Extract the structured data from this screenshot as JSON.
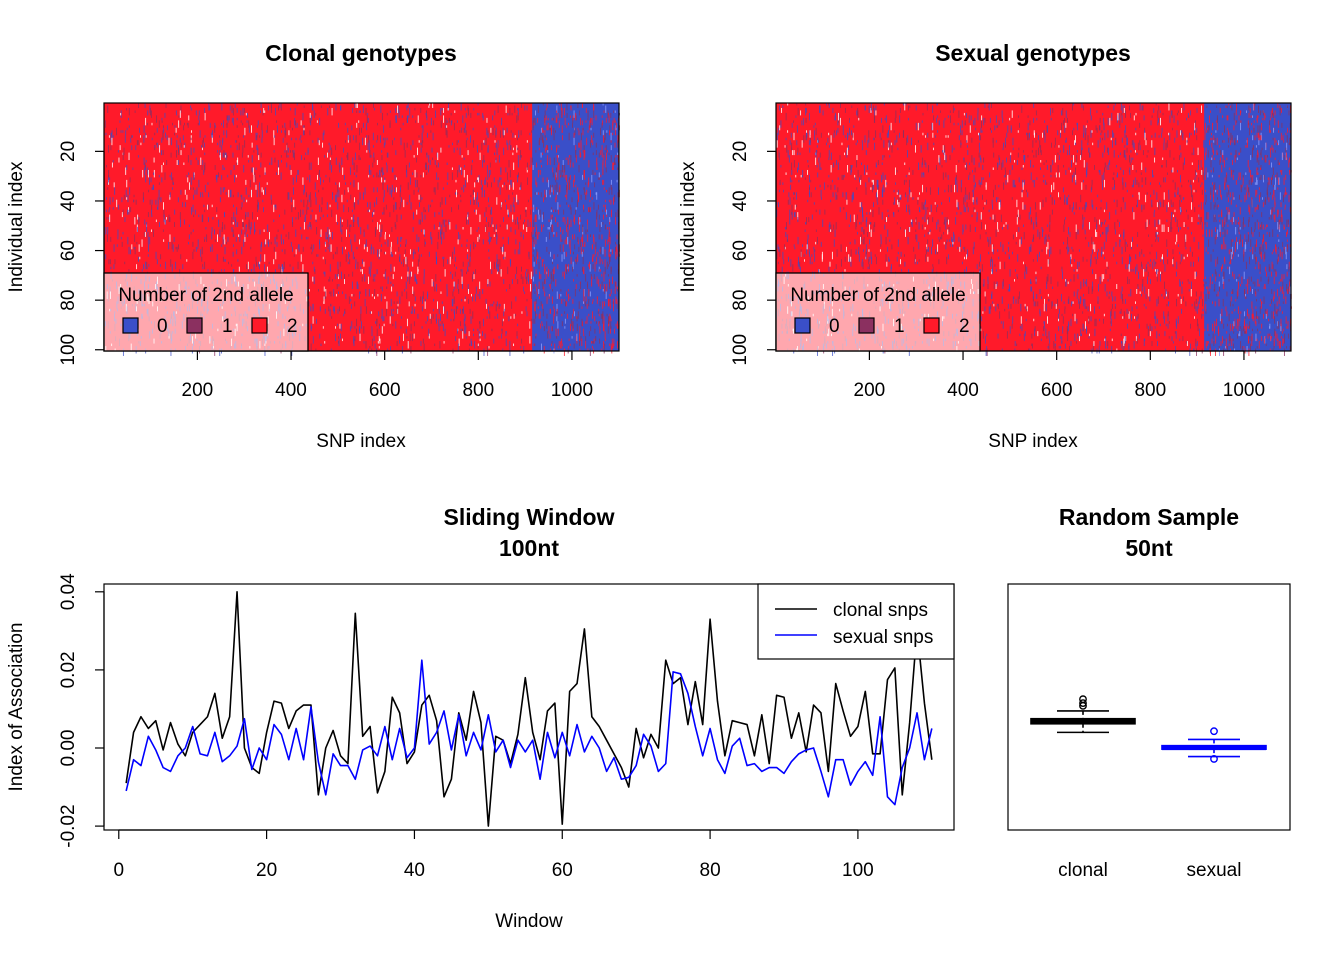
{
  "chart_data": [
    {
      "type": "heatmap",
      "title": "Clonal genotypes",
      "xlabel": "SNP index",
      "ylabel": "Individual index",
      "xlim": [
        0.5,
        1100.5
      ],
      "ylim": [
        100.5,
        0.5
      ],
      "x_ticks": [
        "200",
        "400",
        "600",
        "800",
        "1000"
      ],
      "y_ticks": [
        "20",
        "40",
        "60",
        "80",
        "100"
      ],
      "legend": {
        "title": "Number of 2nd allele",
        "position": "bottom-left",
        "entries": [
          {
            "label": "0",
            "color": "#3A4FC9"
          },
          {
            "label": "1",
            "color": "#8B3060"
          },
          {
            "label": "2",
            "color": "#FF1A2A"
          }
        ]
      },
      "pattern": {
        "snps": 1100,
        "individuals": 100,
        "mostly_2_until_snp": 915,
        "mixed_0_after_snp": 915
      }
    },
    {
      "type": "heatmap",
      "title": "Sexual genotypes",
      "xlabel": "SNP index",
      "ylabel": "Individual index",
      "xlim": [
        0.5,
        1100.5
      ],
      "ylim": [
        100.5,
        0.5
      ],
      "x_ticks": [
        "200",
        "400",
        "600",
        "800",
        "1000"
      ],
      "y_ticks": [
        "20",
        "40",
        "60",
        "80",
        "100"
      ],
      "legend": {
        "title": "Number of 2nd allele",
        "position": "bottom-left",
        "entries": [
          {
            "label": "0",
            "color": "#3A4FC9"
          },
          {
            "label": "1",
            "color": "#8B3060"
          },
          {
            "label": "2",
            "color": "#FF1A2A"
          }
        ]
      },
      "pattern": {
        "snps": 1100,
        "individuals": 100,
        "mostly_2_until_snp": 915,
        "mixed_0_after_snp": 915
      }
    },
    {
      "type": "line",
      "title": [
        "Sliding Window",
        "100nt"
      ],
      "xlabel": "Window",
      "ylabel": "Index of Association",
      "xlim": [
        -2,
        113
      ],
      "ylim": [
        -0.021,
        0.042
      ],
      "x_ticks": [
        0,
        20,
        40,
        60,
        80,
        100
      ],
      "y_ticks": [
        -0.02,
        0.0,
        0.02,
        0.04
      ],
      "y_tick_labels": [
        "-0.02",
        "0.00",
        "0.02",
        "0.04"
      ],
      "legend_position": "top-right",
      "x": [
        1,
        2,
        3,
        4,
        5,
        6,
        7,
        8,
        9,
        10,
        11,
        12,
        13,
        14,
        15,
        16,
        17,
        18,
        19,
        20,
        21,
        22,
        23,
        24,
        25,
        26,
        27,
        28,
        29,
        30,
        31,
        32,
        33,
        34,
        35,
        36,
        37,
        38,
        39,
        40,
        41,
        42,
        43,
        44,
        45,
        46,
        47,
        48,
        49,
        50,
        51,
        52,
        53,
        54,
        55,
        56,
        57,
        58,
        59,
        60,
        61,
        62,
        63,
        64,
        65,
        66,
        67,
        68,
        69,
        70,
        71,
        72,
        73,
        74,
        75,
        76,
        77,
        78,
        79,
        80,
        81,
        82,
        83,
        84,
        85,
        86,
        87,
        88,
        89,
        90,
        91,
        92,
        93,
        94,
        95,
        96,
        97,
        98,
        99,
        100,
        101,
        102,
        103,
        104,
        105,
        106,
        107,
        108,
        109,
        110
      ],
      "series": [
        {
          "name": "clonal snps",
          "color": "#000000",
          "values": [
            -0.009,
            0.004,
            0.008,
            0.005,
            0.007,
            -0.0005,
            0.0065,
            0.001,
            -0.002,
            0.004,
            0.006,
            0.008,
            0.014,
            0.0025,
            0.008,
            0.04,
            0.0,
            -0.005,
            -0.0065,
            0.004,
            0.012,
            0.0115,
            0.005,
            0.0095,
            0.011,
            0.011,
            -0.012,
            0.0,
            0.0045,
            -0.002,
            -0.004,
            0.0345,
            0.003,
            0.0055,
            -0.0115,
            -0.006,
            0.013,
            0.009,
            -0.004,
            -0.001,
            0.011,
            0.0135,
            0.007,
            -0.0125,
            -0.008,
            0.009,
            0.002,
            0.0145,
            0.0065,
            -0.02,
            0.003,
            0.002,
            -0.004,
            0.0035,
            0.018,
            0.004,
            -0.003,
            0.0095,
            0.0115,
            -0.0195,
            0.0145,
            0.0165,
            0.0305,
            0.008,
            0.0055,
            0.002,
            -0.0015,
            -0.005,
            -0.01,
            0.005,
            -0.0025,
            0.0035,
            0.0,
            0.0225,
            0.0165,
            0.018,
            0.006,
            0.017,
            0.006,
            0.033,
            0.012,
            -0.002,
            0.007,
            0.0065,
            0.006,
            -0.002,
            0.0085,
            -0.004,
            0.0135,
            0.013,
            0.0025,
            0.009,
            -0.001,
            0.011,
            0.009,
            -0.006,
            0.0165,
            0.0095,
            0.003,
            0.0055,
            0.0145,
            -0.0015,
            -0.0015,
            0.0175,
            0.0205,
            -0.012,
            0.0065,
            0.0305,
            0.0115,
            -0.003
          ]
        },
        {
          "name": "sexual snps",
          "color": "#0000FF",
          "values": [
            -0.011,
            -0.003,
            -0.0045,
            0.003,
            -0.0005,
            -0.005,
            -0.006,
            -0.002,
            0.0,
            0.0055,
            -0.0015,
            -0.002,
            0.004,
            -0.0035,
            -0.002,
            0.0005,
            0.0075,
            -0.0055,
            0.0,
            -0.003,
            0.006,
            0.0035,
            -0.003,
            0.005,
            -0.003,
            0.0105,
            -0.0035,
            -0.012,
            -0.0015,
            -0.0045,
            -0.0045,
            -0.008,
            -0.0005,
            0.0005,
            -0.002,
            0.0055,
            -0.003,
            0.005,
            -0.0025,
            0.0,
            0.0225,
            0.001,
            0.004,
            0.0095,
            -0.0005,
            0.0085,
            -0.002,
            0.004,
            -0.0005,
            0.0085,
            -0.001,
            0.002,
            -0.005,
            0.002,
            -0.001,
            0.002,
            -0.008,
            0.004,
            -0.0025,
            0.004,
            -0.002,
            0.006,
            -0.001,
            0.003,
            0.0,
            -0.006,
            -0.0025,
            -0.008,
            -0.0075,
            -0.0045,
            0.0035,
            0.0005,
            -0.006,
            -0.004,
            0.0195,
            0.019,
            0.014,
            0.0055,
            -0.002,
            0.005,
            -0.003,
            -0.0065,
            0.0005,
            0.0025,
            -0.0045,
            -0.004,
            -0.006,
            -0.005,
            -0.005,
            -0.0065,
            -0.0035,
            -0.0015,
            -0.0005,
            0.0,
            -0.006,
            -0.0125,
            -0.003,
            -0.003,
            -0.0095,
            -0.006,
            -0.0035,
            -0.007,
            0.008,
            -0.0125,
            -0.0145,
            -0.005,
            0.0,
            0.009,
            -0.003,
            0.005
          ]
        }
      ]
    },
    {
      "type": "box",
      "title": [
        "Random Sample",
        "50nt"
      ],
      "categories": [
        "clonal",
        "sexual"
      ],
      "ylim": [
        -0.021,
        0.042
      ],
      "boxes": [
        {
          "name": "clonal",
          "color": "#000000",
          "whisker_low": 0.004,
          "q1": 0.0062,
          "median": 0.0068,
          "q3": 0.0075,
          "whisker_high": 0.0095,
          "outliers": [
            0.0108,
            0.0115,
            0.0125
          ]
        },
        {
          "name": "sexual",
          "color": "#0000FF",
          "whisker_low": -0.0022,
          "q1": -0.0003,
          "median": 0.0001,
          "q3": 0.0006,
          "whisker_high": 0.0022,
          "outliers": [
            -0.0028,
            0.0043
          ]
        }
      ]
    }
  ]
}
